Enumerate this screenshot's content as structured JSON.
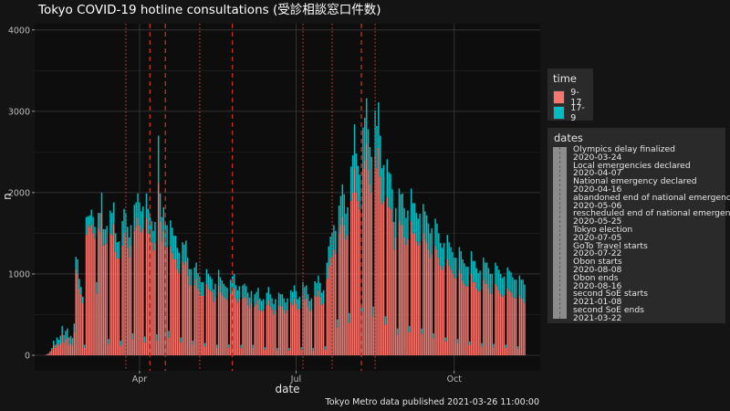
{
  "caption": "Tokyo Metro data published 2021-03-26 11:00:00",
  "legend_time": {
    "title": "time",
    "items": [
      {
        "label": "9-17",
        "color": "#f8766d"
      },
      {
        "label": "17-9",
        "color": "#00bfc4"
      }
    ]
  },
  "legend_dates": {
    "title": "dates",
    "lines": [
      "Olympics delay finalized",
      "2020-03-24",
      "Local emergencies declared",
      "2020-04-07",
      "National emergency declared",
      "2020-04-16",
      "abandoned end of national emergency",
      "2020-05-06",
      "rescheduled end of national emergency",
      "2020-05-25",
      "Tokyo election",
      "2020-07-05",
      "GoTo Travel starts",
      "2020-07-22",
      "Obon starts",
      "2020-08-08",
      "Obon ends",
      "2020-08-16",
      "second SoE starts",
      "2021-01-08",
      "second SoE ends",
      "2021-03-22"
    ]
  },
  "chart_data": {
    "type": "bar",
    "stacked": true,
    "title": "Tokyo COVID-19 hotline consultations (受診相談窓口件数)",
    "xlabel": "date",
    "ylabel": "n",
    "x_start": "2020-02-07",
    "x_range": [
      "2020-01-31",
      "2020-11-20"
    ],
    "x_ticks": [
      {
        "date": "2020-04-01",
        "label": "Apr"
      },
      {
        "date": "2020-07-01",
        "label": "Jul"
      },
      {
        "date": "2020-10-01",
        "label": "Oct"
      }
    ],
    "ylim": [
      0,
      4200
    ],
    "y_ticks": [
      0,
      1000,
      2000,
      3000,
      4000
    ],
    "grid": true,
    "series": [
      {
        "name": "9-17",
        "color": "#f8766d",
        "values": [
          10,
          20,
          40,
          70,
          130,
          90,
          140,
          120,
          150,
          260,
          160,
          200,
          220,
          130,
          150,
          120,
          280,
          1060,
          1000,
          820,
          750,
          640,
          90,
          1480,
          1600,
          1570,
          1610,
          1500,
          1440,
          760,
          1570,
          1520,
          1750,
          1350,
          1360,
          1380,
          140,
          1500,
          1480,
          1620,
          1270,
          1190,
          1190,
          120,
          1350,
          1510,
          1450,
          1320,
          1210,
          1350,
          200,
          1530,
          1580,
          1690,
          1600,
          1510,
          1560,
          160,
          1690,
          1500,
          1490,
          1390,
          1290,
          1390,
          180,
          2120,
          1640,
          1400,
          1520,
          1340,
          1330,
          220,
          1340,
          1260,
          1180,
          1190,
          1060,
          1010,
          160,
          1150,
          1120,
          1160,
          980,
          860,
          860,
          130,
          860,
          940,
          820,
          780,
          730,
          730,
          110,
          880,
          820,
          800,
          780,
          660,
          720,
          90,
          860,
          780,
          750,
          720,
          700,
          680,
          95,
          760,
          800,
          820,
          700,
          650,
          700,
          90,
          700,
          720,
          700,
          620,
          580,
          650,
          90,
          600,
          630,
          680,
          560,
          540,
          560,
          70,
          620,
          680,
          600,
          560,
          500,
          560,
          60,
          620,
          600,
          600,
          560,
          520,
          560,
          60,
          650,
          620,
          700,
          640,
          560,
          580,
          70,
          740,
          680,
          700,
          600,
          540,
          560,
          60,
          740,
          720,
          800,
          720,
          620,
          640,
          70,
          940,
          1100,
          1200,
          1220,
          1300,
          1250,
          340,
          1500,
          1600,
          1700,
          1600,
          1420,
          1480,
          400,
          1900,
          2000,
          2300,
          2000,
          1900,
          1800,
          500,
          2300,
          2400,
          2600,
          2280,
          2100,
          2000,
          480,
          2450,
          2300,
          2550,
          2200,
          1860,
          1900,
          380,
          1950,
          1820,
          1800,
          1640,
          1300,
          1450,
          250,
          1650,
          1600,
          1600,
          1450,
          1360,
          1430,
          280,
          1650,
          1500,
          1500,
          1400,
          1350,
          1400,
          260,
          1500,
          1420,
          1380,
          1300,
          1200,
          1250,
          210,
          1350,
          1300,
          1200,
          1100,
          1050,
          1100,
          170,
          1180,
          1100,
          1050,
          1000,
          950,
          950,
          150,
          1050,
          1000,
          920,
          880,
          850,
          850,
          130,
          1000,
          900,
          900,
          820,
          780,
          800,
          110,
          930,
          880,
          880,
          820,
          760,
          760,
          100,
          880,
          850,
          800,
          760,
          720,
          740,
          90,
          820,
          790,
          770,
          720,
          700,
          700,
          80,
          740,
          700,
          700,
          650
        ]
      },
      {
        "name": "17-9",
        "color": "#00bfc4",
        "values": [
          0,
          5,
          10,
          20,
          50,
          40,
          80,
          70,
          90,
          100,
          90,
          100,
          110,
          90,
          90,
          90,
          110,
          150,
          180,
          120,
          90,
          80,
          40,
          220,
          110,
          150,
          180,
          200,
          140,
          140,
          180,
          230,
          250,
          200,
          190,
          210,
          60,
          280,
          270,
          260,
          230,
          200,
          210,
          60,
          300,
          290,
          300,
          260,
          240,
          250,
          70,
          320,
          300,
          300,
          280,
          260,
          270,
          70,
          300,
          300,
          260,
          260,
          240,
          250,
          80,
          580,
          350,
          300,
          300,
          280,
          270,
          80,
          320,
          310,
          290,
          280,
          260,
          250,
          60,
          240,
          240,
          250,
          220,
          200,
          200,
          50,
          220,
          200,
          190,
          180,
          170,
          170,
          40,
          180,
          180,
          170,
          160,
          150,
          160,
          40,
          190,
          180,
          170,
          160,
          150,
          150,
          40,
          170,
          170,
          180,
          160,
          150,
          150,
          40,
          160,
          160,
          150,
          150,
          130,
          140,
          40,
          150,
          150,
          150,
          140,
          130,
          130,
          30,
          150,
          160,
          150,
          140,
          130,
          130,
          30,
          150,
          150,
          150,
          140,
          130,
          140,
          30,
          150,
          160,
          160,
          150,
          130,
          140,
          30,
          160,
          160,
          160,
          150,
          130,
          140,
          30,
          170,
          170,
          180,
          170,
          150,
          160,
          40,
          200,
          240,
          260,
          280,
          300,
          280,
          100,
          340,
          360,
          400,
          380,
          320,
          340,
          120,
          420,
          460,
          540,
          480,
          430,
          420,
          120,
          500,
          520,
          560,
          500,
          460,
          440,
          120,
          560,
          520,
          560,
          500,
          440,
          440,
          100,
          460,
          430,
          430,
          400,
          340,
          360,
          80,
          400,
          380,
          390,
          360,
          330,
          350,
          80,
          400,
          370,
          370,
          350,
          330,
          340,
          70,
          360,
          350,
          340,
          320,
          300,
          310,
          60,
          330,
          320,
          300,
          280,
          270,
          280,
          50,
          300,
          290,
          280,
          270,
          250,
          250,
          50,
          280,
          280,
          260,
          250,
          240,
          240,
          40,
          280,
          260,
          260,
          250,
          230,
          240,
          40,
          270,
          260,
          260,
          250,
          240,
          240,
          40,
          260,
          250,
          250,
          240,
          230,
          230,
          40,
          260,
          250,
          250,
          240,
          230,
          230,
          30,
          240,
          230,
          230,
          220
        ]
      }
    ],
    "vlines": [
      {
        "date": "2020-03-24",
        "style": "dotted"
      },
      {
        "date": "2020-04-07",
        "style": "dashed"
      },
      {
        "date": "2020-04-16",
        "style": "dashed"
      },
      {
        "date": "2020-05-06",
        "style": "dotted"
      },
      {
        "date": "2020-05-25",
        "style": "dashed"
      },
      {
        "date": "2020-07-05",
        "style": "dotted"
      },
      {
        "date": "2020-07-22",
        "style": "dotted"
      },
      {
        "date": "2020-08-08",
        "style": "dashed"
      },
      {
        "date": "2020-08-16",
        "style": "dotted"
      }
    ]
  }
}
